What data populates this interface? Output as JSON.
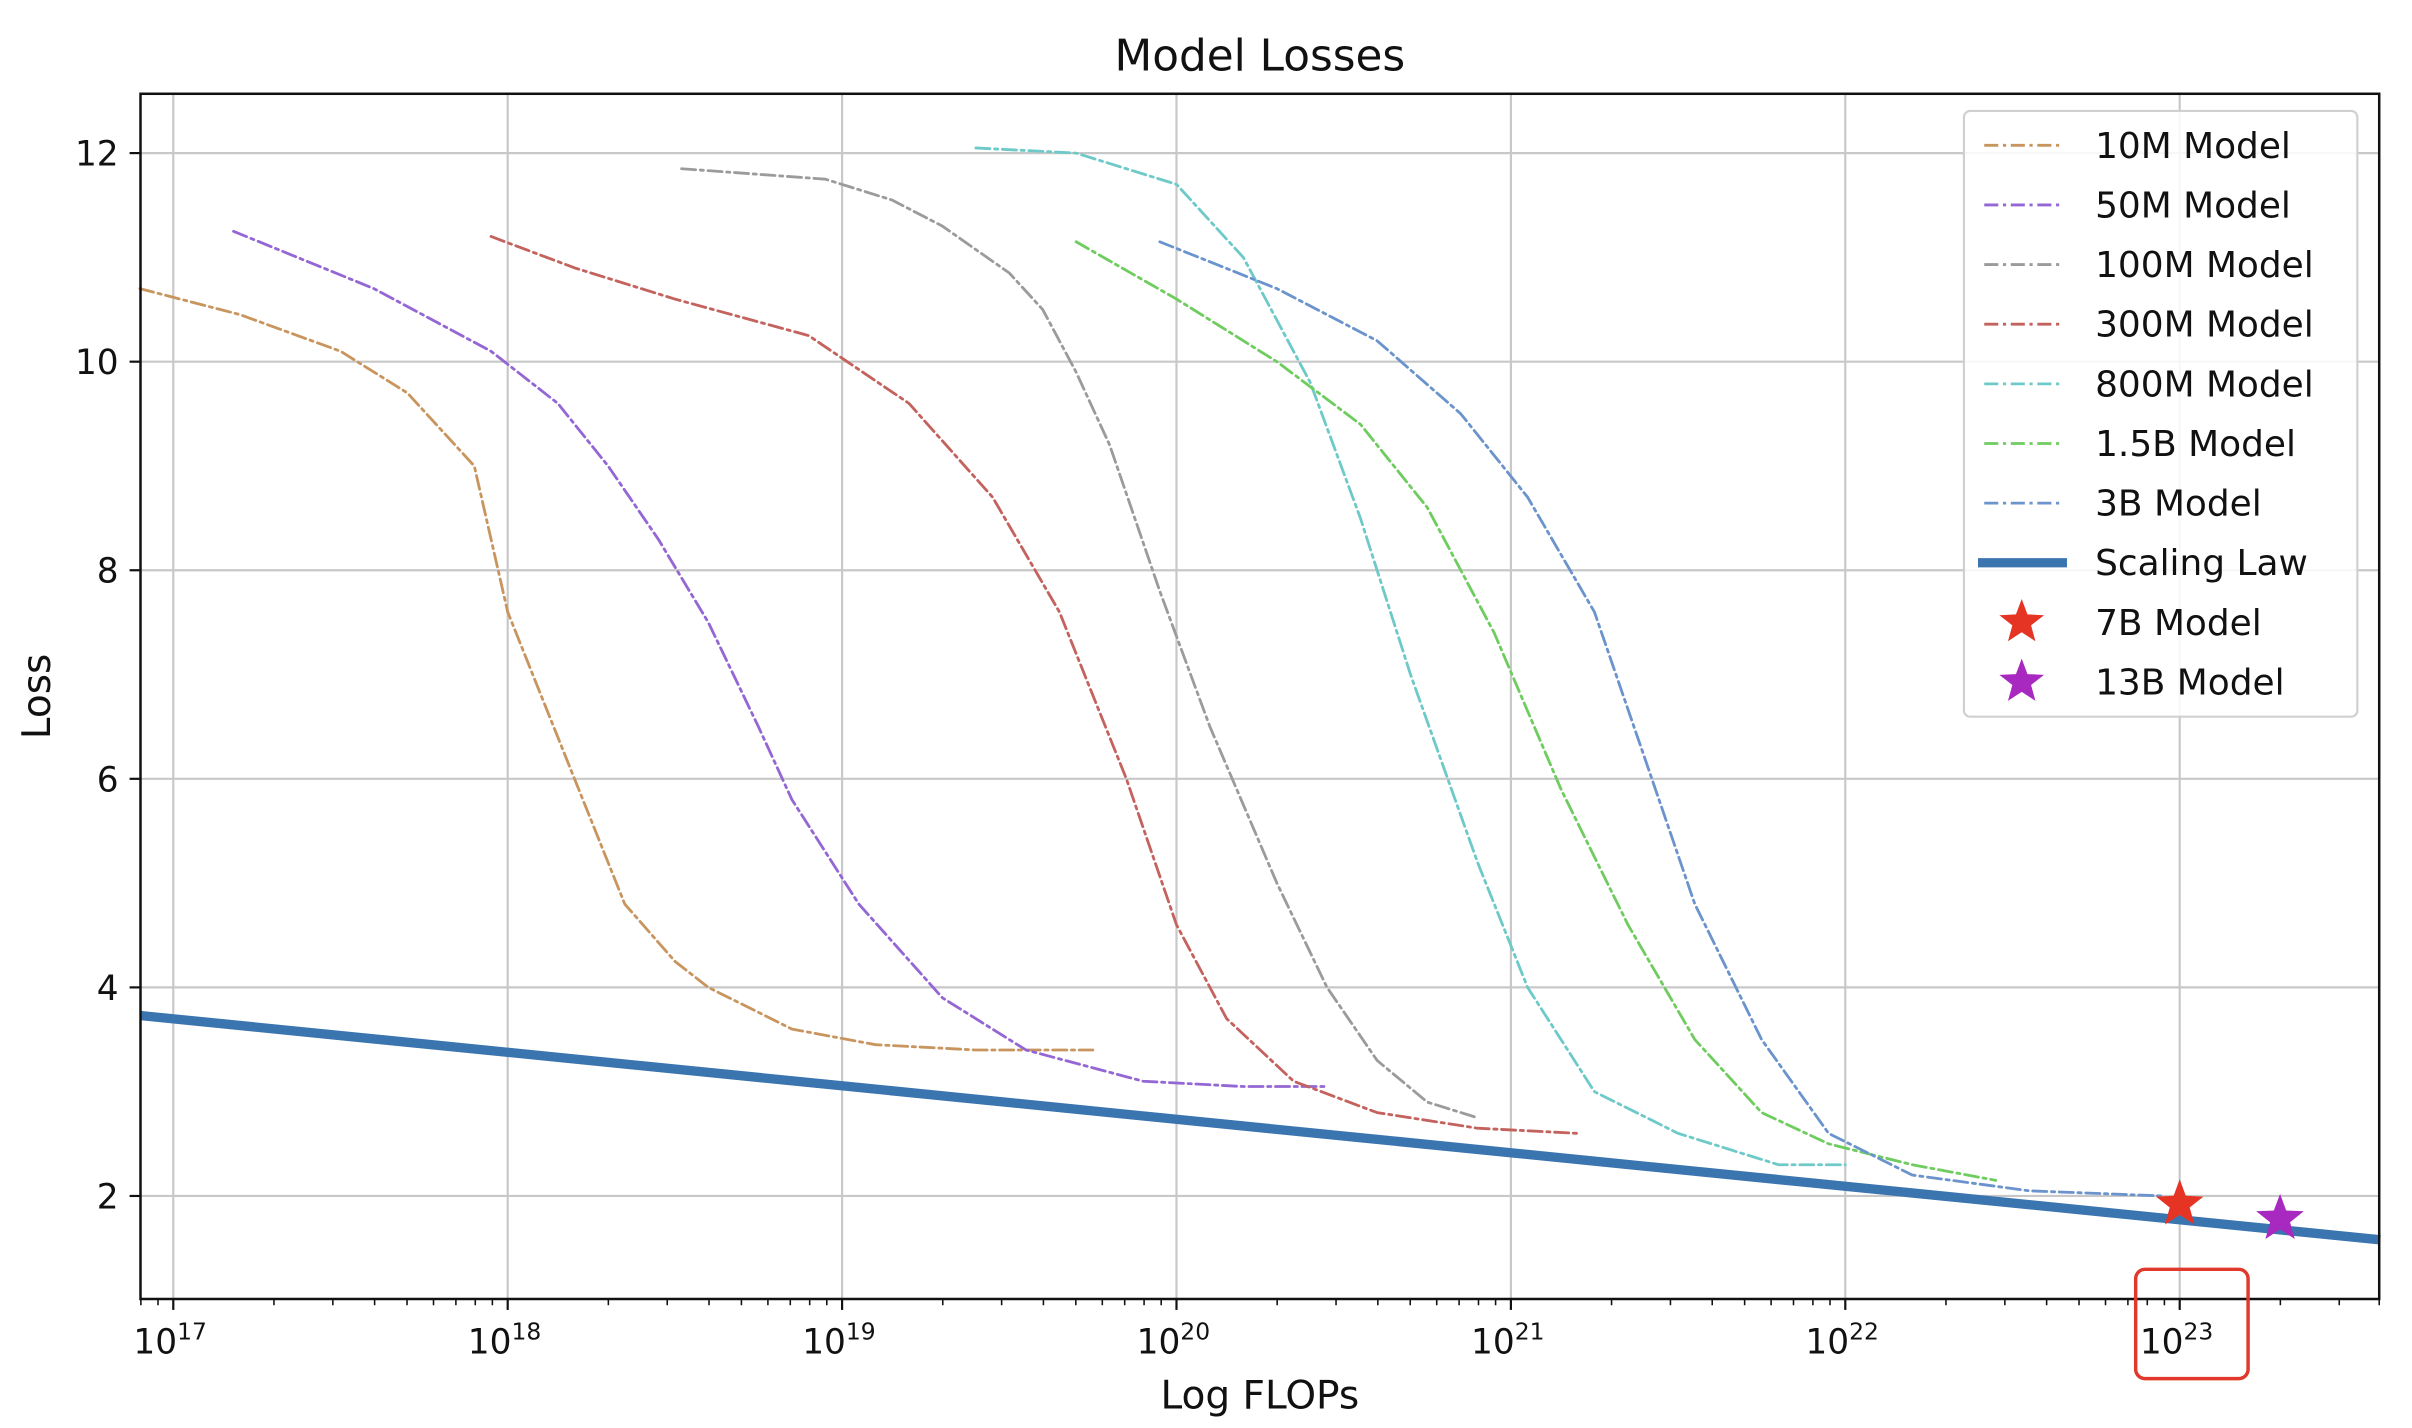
{
  "chart_data": {
    "type": "line",
    "title": "Model Losses",
    "xlabel": "Log FLOPs",
    "ylabel": "Loss",
    "xscale": "log",
    "xlim_log10": [
      16.9,
      23.6
    ],
    "ylim": [
      1.0,
      12.56
    ],
    "x_ticks": [
      {
        "exp": 17,
        "label": "10",
        "sup": "17"
      },
      {
        "exp": 18,
        "label": "10",
        "sup": "18"
      },
      {
        "exp": 19,
        "label": "10",
        "sup": "19"
      },
      {
        "exp": 20,
        "label": "10",
        "sup": "20"
      },
      {
        "exp": 21,
        "label": "10",
        "sup": "21"
      },
      {
        "exp": 22,
        "label": "10",
        "sup": "22"
      },
      {
        "exp": 23,
        "label": "10",
        "sup": "23"
      }
    ],
    "y_ticks": [
      2,
      4,
      6,
      8,
      10,
      12
    ],
    "grid": true,
    "legend_position": "upper right",
    "series": [
      {
        "name": "10M Model",
        "color": "#c9955f",
        "style": "dashdot",
        "points": [
          [
            16.9,
            10.7
          ],
          [
            17.2,
            10.45
          ],
          [
            17.5,
            10.1
          ],
          [
            17.7,
            9.7
          ],
          [
            17.9,
            9.0
          ],
          [
            18.0,
            7.6
          ],
          [
            18.1,
            6.8
          ],
          [
            18.2,
            6.0
          ],
          [
            18.35,
            4.8
          ],
          [
            18.5,
            4.25
          ],
          [
            18.6,
            4.0
          ],
          [
            18.85,
            3.6
          ],
          [
            19.1,
            3.45
          ],
          [
            19.4,
            3.4
          ],
          [
            19.75,
            3.4
          ]
        ]
      },
      {
        "name": "50M Model",
        "color": "#9467d4",
        "style": "dashdot",
        "points": [
          [
            17.18,
            11.25
          ],
          [
            17.6,
            10.7
          ],
          [
            17.95,
            10.1
          ],
          [
            18.15,
            9.6
          ],
          [
            18.3,
            9.0
          ],
          [
            18.45,
            8.3
          ],
          [
            18.6,
            7.5
          ],
          [
            18.75,
            6.5
          ],
          [
            18.85,
            5.8
          ],
          [
            19.05,
            4.8
          ],
          [
            19.3,
            3.9
          ],
          [
            19.55,
            3.4
          ],
          [
            19.9,
            3.1
          ],
          [
            20.2,
            3.05
          ],
          [
            20.45,
            3.05
          ]
        ]
      },
      {
        "name": "100M Model",
        "color": "#9b9b9b",
        "style": "dashdot",
        "points": [
          [
            18.52,
            11.85
          ],
          [
            18.95,
            11.75
          ],
          [
            19.15,
            11.55
          ],
          [
            19.3,
            11.3
          ],
          [
            19.5,
            10.85
          ],
          [
            19.6,
            10.5
          ],
          [
            19.7,
            9.9
          ],
          [
            19.8,
            9.2
          ],
          [
            19.95,
            7.8
          ],
          [
            20.1,
            6.5
          ],
          [
            20.3,
            5.0
          ],
          [
            20.45,
            4.0
          ],
          [
            20.6,
            3.3
          ],
          [
            20.75,
            2.9
          ],
          [
            20.9,
            2.75
          ]
        ]
      },
      {
        "name": "300M Model",
        "color": "#c4625e",
        "style": "dashdot",
        "points": [
          [
            17.95,
            11.2
          ],
          [
            18.2,
            10.9
          ],
          [
            18.5,
            10.6
          ],
          [
            18.9,
            10.25
          ],
          [
            19.2,
            9.6
          ],
          [
            19.45,
            8.7
          ],
          [
            19.65,
            7.6
          ],
          [
            19.85,
            6.0
          ],
          [
            20.0,
            4.6
          ],
          [
            20.15,
            3.7
          ],
          [
            20.35,
            3.1
          ],
          [
            20.6,
            2.8
          ],
          [
            20.9,
            2.65
          ],
          [
            21.2,
            2.6
          ]
        ]
      },
      {
        "name": "800M Model",
        "color": "#6ec9c9",
        "style": "dashdot",
        "points": [
          [
            19.4,
            12.05
          ],
          [
            19.7,
            12.0
          ],
          [
            20.0,
            11.7
          ],
          [
            20.2,
            11.0
          ],
          [
            20.4,
            9.8
          ],
          [
            20.55,
            8.5
          ],
          [
            20.7,
            7.0
          ],
          [
            20.9,
            5.2
          ],
          [
            21.05,
            4.0
          ],
          [
            21.25,
            3.0
          ],
          [
            21.5,
            2.6
          ],
          [
            21.8,
            2.3
          ],
          [
            22.0,
            2.3
          ]
        ]
      },
      {
        "name": "1.5B Model",
        "color": "#6fcc5f",
        "style": "dashdot",
        "points": [
          [
            19.7,
            11.15
          ],
          [
            20.0,
            10.6
          ],
          [
            20.3,
            10.0
          ],
          [
            20.55,
            9.4
          ],
          [
            20.75,
            8.6
          ],
          [
            20.95,
            7.4
          ],
          [
            21.15,
            5.9
          ],
          [
            21.35,
            4.6
          ],
          [
            21.55,
            3.5
          ],
          [
            21.75,
            2.8
          ],
          [
            21.95,
            2.5
          ],
          [
            22.2,
            2.3
          ],
          [
            22.45,
            2.15
          ]
        ]
      },
      {
        "name": "3B Model",
        "color": "#6b93cc",
        "style": "dashdot",
        "points": [
          [
            19.95,
            11.15
          ],
          [
            20.3,
            10.7
          ],
          [
            20.6,
            10.2
          ],
          [
            20.85,
            9.5
          ],
          [
            21.05,
            8.7
          ],
          [
            21.25,
            7.6
          ],
          [
            21.4,
            6.2
          ],
          [
            21.55,
            4.8
          ],
          [
            21.75,
            3.5
          ],
          [
            21.95,
            2.6
          ],
          [
            22.2,
            2.2
          ],
          [
            22.55,
            2.05
          ],
          [
            22.95,
            2.0
          ]
        ]
      },
      {
        "name": "Scaling Law",
        "color": "#3b75b0",
        "style": "solid",
        "points": [
          [
            16.9,
            3.73
          ],
          [
            23.6,
            1.58
          ]
        ]
      }
    ],
    "markers": [
      {
        "name": "7B Model",
        "color": "#e53424",
        "shape": "star",
        "x_log10": 23.0,
        "y": 1.92
      },
      {
        "name": "13B Model",
        "color": "#a829c0",
        "shape": "star",
        "x_log10": 23.3,
        "y": 1.78
      }
    ],
    "annotations": [
      {
        "type": "highlight-box",
        "target": "x tick 10^23",
        "color": "#e0392b"
      }
    ]
  }
}
